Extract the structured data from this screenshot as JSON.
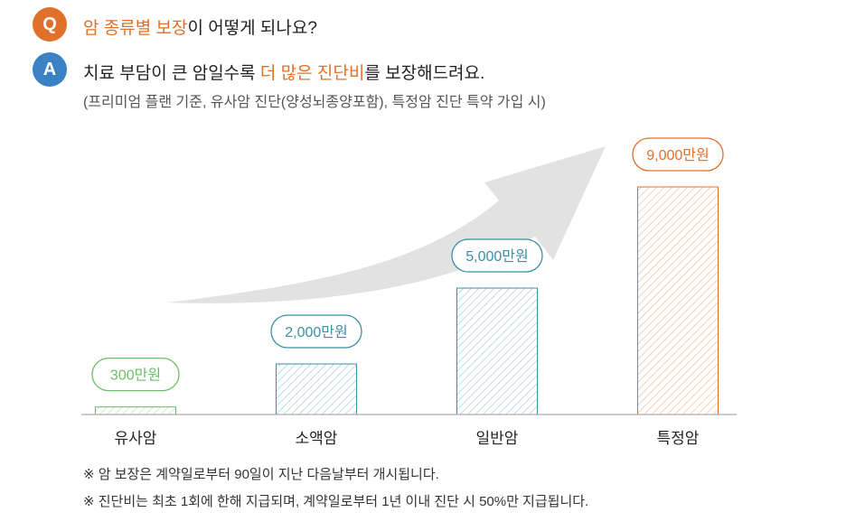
{
  "qa": {
    "q_badge": "Q",
    "q_highlight": "암 종류별 보장",
    "q_rest": "이 어떻게 되나요?",
    "a_badge": "A",
    "a_pre": "치료 부담이 큰 암일수록 ",
    "a_highlight": "더 많은 진단비",
    "a_post": "를 보장해드려요.",
    "a_sub": "(프리미엄 플랜 기준, 유사암 진단(양성뇌종양포함), 특정암 진단 특약 가입 시)"
  },
  "colors": {
    "orange": "#e0702a",
    "blue": "#3b82c4",
    "green": "#6cbf6a",
    "teal": "#3b8fa8",
    "arrow": "#e2e2e2"
  },
  "chart_data": {
    "type": "bar",
    "categories": [
      "유사암",
      "소액암",
      "일반암",
      "특정암"
    ],
    "values": [
      300,
      2000,
      5000,
      9000
    ],
    "value_labels": [
      "300만원",
      "2,000만원",
      "5,000만원",
      "9,000만원"
    ],
    "bar_colors": [
      "#6cbf6a",
      "#3b8fa8",
      "#3b8fa8",
      "#e0702a"
    ]
  },
  "notes": [
    "※ 암 보장은 계약일로부터 90일이 지난 다음날부터 개시됩니다.",
    "※ 진단비는 최초 1회에 한해 지급되며, 계약일로부터 1년 이내 진단 시 50%만 지급됩니다."
  ]
}
